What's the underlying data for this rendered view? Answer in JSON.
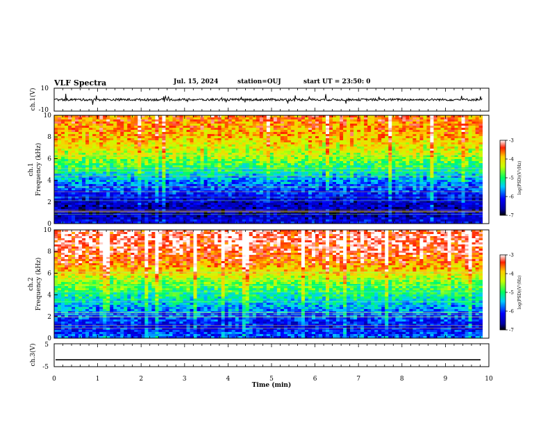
{
  "header": {
    "title": "VLF Spectra",
    "date": "Jul. 15, 2024",
    "station": "station=OUJ",
    "start": "start UT =  23:50: 0"
  },
  "chart_data": [
    {
      "type": "line",
      "name": "ch1-waveform",
      "ylabel": "ch.1(V)",
      "ylim": [
        -10,
        10
      ],
      "yticks": [
        "10",
        "-10"
      ],
      "xlim": [
        0,
        10
      ],
      "baseline": 0,
      "approx_amplitude": 2
    },
    {
      "type": "heatmap",
      "name": "ch1-spectrogram",
      "title": "ch.1",
      "ylabel": "Frequency (kHz)",
      "ylim": [
        0,
        10
      ],
      "yticks": [
        "0",
        "2",
        "4",
        "6",
        "8",
        "10"
      ],
      "xlim": [
        0,
        9.85
      ],
      "colorbar": {
        "label": "log(PSD)(V²/Hz)",
        "range": [
          -7,
          -3
        ],
        "ticks": [
          "-3",
          "-4",
          "-5",
          "-6",
          "-7"
        ]
      },
      "levels_by_frequency_kHz": [
        [
          0,
          -6.2
        ],
        [
          1,
          -6.6
        ],
        [
          2,
          -6.4
        ],
        [
          3,
          -6.0
        ],
        [
          4,
          -5.6
        ],
        [
          5,
          -5.1
        ],
        [
          6,
          -4.6
        ],
        [
          7,
          -4.2
        ],
        [
          8,
          -3.9
        ],
        [
          9,
          -3.7
        ],
        [
          10,
          -3.6
        ]
      ]
    },
    {
      "type": "heatmap",
      "name": "ch2-spectrogram",
      "title": "ch.2",
      "ylabel": "Frequency (kHz)",
      "ylim": [
        0,
        10
      ],
      "yticks": [
        "0",
        "2",
        "4",
        "6",
        "8",
        "10"
      ],
      "xlim": [
        0,
        9.85
      ],
      "colorbar": {
        "label": "log(PSD)(V²/Hz)",
        "range": [
          -7,
          -3
        ],
        "ticks": [
          "-3",
          "-4",
          "-5",
          "-6",
          "-7"
        ]
      },
      "levels_by_frequency_kHz": [
        [
          0,
          -5.8
        ],
        [
          1,
          -6.2
        ],
        [
          2,
          -5.9
        ],
        [
          3,
          -5.5
        ],
        [
          4,
          -5.1
        ],
        [
          5,
          -4.7
        ],
        [
          6,
          -4.1
        ],
        [
          7,
          -3.6
        ],
        [
          8,
          -3.3
        ],
        [
          9,
          -3.2
        ],
        [
          10,
          -3.2
        ]
      ]
    },
    {
      "type": "line",
      "name": "ch3-waveform",
      "ylabel": "ch.3(V)",
      "ylim": [
        -5,
        5
      ],
      "yticks": [
        "5",
        "-5"
      ],
      "xlim": [
        0,
        10
      ],
      "values": [
        -2,
        -2
      ]
    }
  ],
  "xaxis": {
    "label": "Time (min)",
    "ticks": [
      "0",
      "1",
      "2",
      "3",
      "4",
      "5",
      "6",
      "7",
      "8",
      "9",
      "10"
    ]
  }
}
